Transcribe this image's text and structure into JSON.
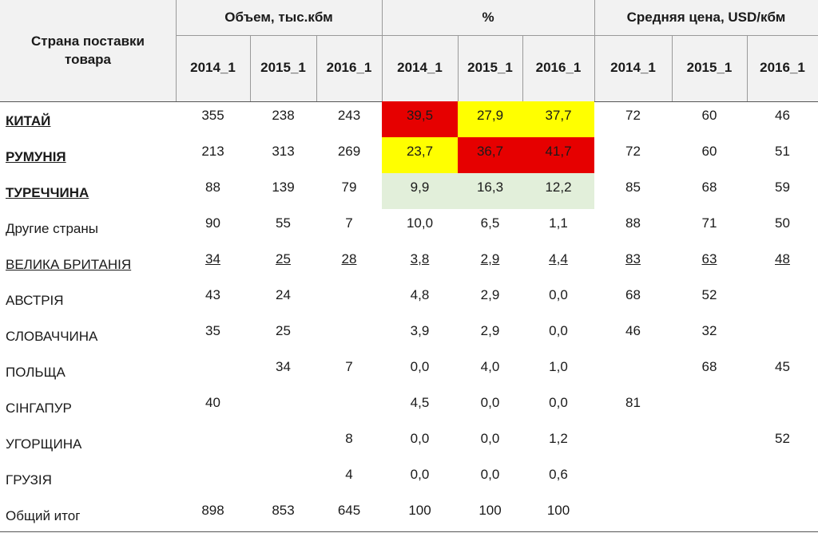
{
  "header": {
    "country_col": "Страна поставки товара",
    "groups": [
      "Объем, тыс.кбм",
      "%",
      "Средняя цена, USD/кбм"
    ],
    "years": [
      "2014_1",
      "2015_1",
      "2016_1"
    ]
  },
  "colors": {
    "red": "#e60000",
    "yellow": "#ffff00",
    "green": "#e2efda",
    "header_bg": "#f2f2f2"
  },
  "rows": [
    {
      "country": "КИТАЙ",
      "style": "bold",
      "volume": [
        "355",
        "238",
        "243"
      ],
      "percent": [
        "39,5",
        "27,9",
        "37,7"
      ],
      "price": [
        "72",
        "60",
        "46"
      ]
    },
    {
      "country": "РУМУНІЯ",
      "style": "bold",
      "volume": [
        "213",
        "313",
        "269"
      ],
      "percent": [
        "23,7",
        "36,7",
        "41,7"
      ],
      "price": [
        "72",
        "60",
        "51"
      ]
    },
    {
      "country": "ТУРЕЧЧИНА",
      "style": "bold",
      "volume": [
        "88",
        "139",
        "79"
      ],
      "percent": [
        "9,9",
        "16,3",
        "12,2"
      ],
      "price": [
        "85",
        "68",
        "59"
      ]
    },
    {
      "country": "Другие страны",
      "style": "",
      "volume": [
        "90",
        "55",
        "7"
      ],
      "percent": [
        "10,0",
        "6,5",
        "1,1"
      ],
      "price": [
        "88",
        "71",
        "50"
      ]
    },
    {
      "country": "ВЕЛИКА БРИТАНІЯ",
      "style": "ul",
      "volume": [
        "34",
        "25",
        "28"
      ],
      "percent": [
        "3,8",
        "2,9",
        "4,4"
      ],
      "price": [
        "83",
        "63",
        "48"
      ]
    },
    {
      "country": "АВСТРІЯ",
      "style": "",
      "volume": [
        "43",
        "24",
        ""
      ],
      "percent": [
        "4,8",
        "2,9",
        "0,0"
      ],
      "price": [
        "68",
        "52",
        ""
      ]
    },
    {
      "country": "СЛОВАЧЧИНА",
      "style": "",
      "volume": [
        "35",
        "25",
        ""
      ],
      "percent": [
        "3,9",
        "2,9",
        "0,0"
      ],
      "price": [
        "46",
        "32",
        ""
      ]
    },
    {
      "country": "ПОЛЬЩА",
      "style": "",
      "volume": [
        "",
        "34",
        "7"
      ],
      "percent": [
        "0,0",
        "4,0",
        "1,0"
      ],
      "price": [
        "",
        "68",
        "45"
      ]
    },
    {
      "country": "СІНГАПУР",
      "style": "",
      "volume": [
        "40",
        "",
        ""
      ],
      "percent": [
        "4,5",
        "0,0",
        "0,0"
      ],
      "price": [
        "81",
        "",
        ""
      ]
    },
    {
      "country": "УГОРЩИНА",
      "style": "",
      "volume": [
        "",
        "",
        "8"
      ],
      "percent": [
        "0,0",
        "0,0",
        "1,2"
      ],
      "price": [
        "",
        "",
        "52"
      ]
    },
    {
      "country": "ГРУЗІЯ",
      "style": "",
      "volume": [
        "",
        "",
        "4"
      ],
      "percent": [
        "0,0",
        "0,0",
        "0,6"
      ],
      "price": [
        "",
        "",
        ""
      ]
    },
    {
      "country": "Общий итог",
      "style": "",
      "volume": [
        "898",
        "853",
        "645"
      ],
      "percent": [
        "100",
        "100",
        "100"
      ],
      "price": [
        "",
        "",
        ""
      ]
    }
  ],
  "highlights": [
    [
      "red",
      "yellow",
      "yellow"
    ],
    [
      "yellow",
      "red",
      "red"
    ],
    [
      "green",
      "green",
      "green"
    ]
  ]
}
